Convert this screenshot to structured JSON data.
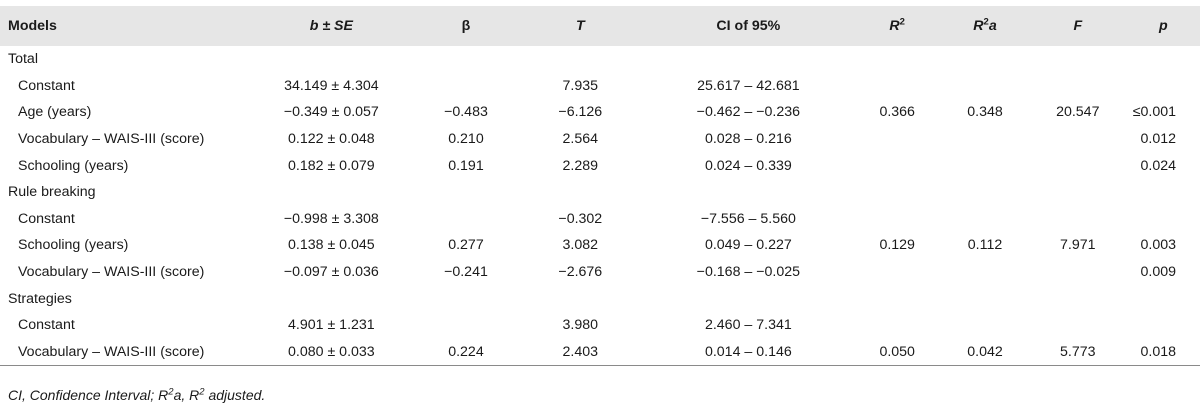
{
  "headers": {
    "models": "Models",
    "b_se": "b ± SE",
    "beta": "β",
    "t": "T",
    "ci": "CI of 95%",
    "r2": "R",
    "r2_sup": "2",
    "r2a": "R",
    "r2a_sup": "2",
    "r2a_suffix": "a",
    "f": "F",
    "p": "p"
  },
  "rows": [
    {
      "type": "group",
      "label": "Total"
    },
    {
      "type": "row",
      "label": "Constant",
      "b_se": "34.149 ± 4.304",
      "beta": "",
      "t": "7.935",
      "ci": "25.617 – 42.681",
      "r2": "",
      "r2a": "",
      "f": "",
      "p": ""
    },
    {
      "type": "row",
      "label": "Age (years)",
      "b_se": "−0.349 ± 0.057",
      "beta": "−0.483",
      "t": "−6.126",
      "ci": "−0.462 – −0.236",
      "r2": "0.366",
      "r2a": "0.348",
      "f": "20.547",
      "p": "≤0.001"
    },
    {
      "type": "row",
      "label": "Vocabulary – WAIS-III (score)",
      "b_se": "0.122 ± 0.048",
      "beta": "0.210",
      "t": "2.564",
      "ci": "0.028 – 0.216",
      "r2": "",
      "r2a": "",
      "f": "",
      "p": "0.012"
    },
    {
      "type": "row",
      "label": "Schooling (years)",
      "b_se": "0.182 ± 0.079",
      "beta": "0.191",
      "t": "2.289",
      "ci": "0.024 – 0.339",
      "r2": "",
      "r2a": "",
      "f": "",
      "p": "0.024"
    },
    {
      "type": "group",
      "label": "Rule breaking"
    },
    {
      "type": "row",
      "label": "Constant",
      "b_se": "−0.998 ± 3.308",
      "beta": "",
      "t": "−0.302",
      "ci": "−7.556 – 5.560",
      "r2": "",
      "r2a": "",
      "f": "",
      "p": ""
    },
    {
      "type": "row",
      "label": "Schooling (years)",
      "b_se": "0.138 ± 0.045",
      "beta": "0.277",
      "t": "3.082",
      "ci": "0.049 – 0.227",
      "r2": "0.129",
      "r2a": "0.112",
      "f": "7.971",
      "p": "0.003"
    },
    {
      "type": "row",
      "label": "Vocabulary – WAIS-III (score)",
      "b_se": "−0.097 ± 0.036",
      "beta": "−0.241",
      "t": "−2.676",
      "ci": "−0.168 – −0.025",
      "r2": "",
      "r2a": "",
      "f": "",
      "p": "0.009"
    },
    {
      "type": "group",
      "label": "Strategies"
    },
    {
      "type": "row",
      "label": "Constant",
      "b_se": "4.901 ± 1.231",
      "beta": "",
      "t": "3.980",
      "ci": "2.460 – 7.341",
      "r2": "",
      "r2a": "",
      "f": "",
      "p": ""
    },
    {
      "type": "row",
      "label": "Vocabulary – WAIS-III (score)",
      "b_se": "0.080 ± 0.033",
      "beta": "0.224",
      "t": "2.403",
      "ci": "0.014 – 0.146",
      "r2": "0.050",
      "r2a": "0.042",
      "f": "5.773",
      "p": "0.018"
    }
  ],
  "footnote": {
    "part1": "CI, Confidence Interval; R",
    "sup1": "2",
    "part2": "a, R",
    "sup2": "2",
    "part3": " adjusted."
  }
}
